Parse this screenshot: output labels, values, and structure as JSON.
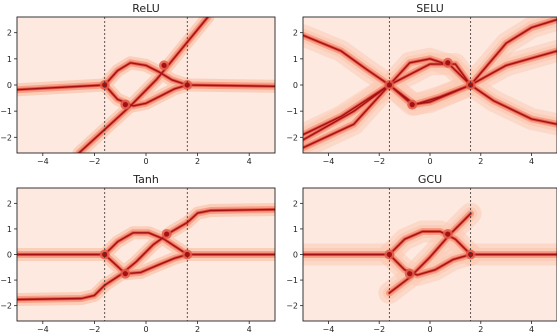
{
  "chart_data": [
    {
      "type": "heatmap",
      "title": "ReLU",
      "xlim": [
        -5,
        5
      ],
      "ylim": [
        -2.6,
        2.6
      ],
      "xticks": [
        -4,
        -2,
        0,
        2,
        4
      ],
      "yticks": [
        -2,
        -1,
        0,
        1,
        2
      ],
      "xtick_labels": [
        "−4",
        "−2",
        "0",
        "2",
        "4"
      ],
      "ytick_labels": [
        "−2",
        "−1",
        "0",
        "1",
        "2"
      ],
      "vlines": [
        -1.6,
        1.6
      ],
      "curves": [
        {
          "x": [
            -5,
            -1.6
          ],
          "y": [
            -0.18,
            0.0
          ]
        },
        {
          "x": [
            1.6,
            5
          ],
          "y": [
            0.0,
            -0.05
          ]
        },
        {
          "x": [
            -1.6,
            -1.1,
            -0.6,
            0.0,
            0.5,
            1.0,
            1.6
          ],
          "y": [
            0.0,
            0.55,
            0.85,
            0.75,
            0.5,
            0.2,
            0.0
          ]
        },
        {
          "x": [
            -1.6,
            -1.1,
            -0.5,
            0.0,
            0.6,
            1.1,
            1.6
          ],
          "y": [
            0.0,
            -0.55,
            -0.8,
            -0.7,
            -0.4,
            -0.15,
            0.0
          ]
        },
        {
          "x": [
            -2.6,
            -1.6,
            -0.6,
            0.4,
            1.4,
            2.4
          ],
          "y": [
            -2.6,
            -1.7,
            -0.8,
            0.2,
            1.4,
            2.6
          ]
        }
      ],
      "hotspots": [
        [
          -0.8,
          -0.75
        ],
        [
          0.7,
          0.75
        ],
        [
          -1.6,
          0.0
        ],
        [
          1.6,
          0.0
        ]
      ]
    },
    {
      "type": "heatmap",
      "title": "SELU",
      "xlim": [
        -5,
        5
      ],
      "ylim": [
        -2.6,
        2.6
      ],
      "xticks": [
        -4,
        -2,
        0,
        2,
        4
      ],
      "yticks": [
        -2,
        -1,
        0,
        1,
        2
      ],
      "xtick_labels": [
        "−4",
        "−2",
        "0",
        "2",
        "4"
      ],
      "ytick_labels": [
        "−2",
        "−1",
        "0",
        "1",
        "2"
      ],
      "vlines": [
        -1.6,
        1.6
      ],
      "curves": [
        {
          "x": [
            -5,
            -3.5,
            -2.5,
            -1.6,
            -0.6,
            0.4,
            1.6,
            3.0,
            5.0
          ],
          "y": [
            1.9,
            1.3,
            0.6,
            0.0,
            -0.75,
            -0.45,
            0.0,
            0.75,
            1.3
          ]
        },
        {
          "x": [
            -5,
            -3.5,
            -1.6,
            0.0,
            1.0,
            1.6,
            2.5,
            4.0,
            5.0
          ],
          "y": [
            -1.9,
            -1.2,
            0.0,
            0.8,
            0.8,
            0.0,
            -0.6,
            -1.3,
            -1.5
          ]
        },
        {
          "x": [
            -5,
            -3.0,
            -1.6,
            -0.8,
            0.0,
            0.8,
            1.6,
            3.0,
            4.0,
            5.0
          ],
          "y": [
            -2.1,
            -1.0,
            0.0,
            0.85,
            1.0,
            0.75,
            0.0,
            1.6,
            2.2,
            2.5
          ]
        },
        {
          "x": [
            -5,
            -3.0,
            -1.6,
            -0.7,
            0.0,
            1.6
          ],
          "y": [
            -2.4,
            -1.5,
            0.0,
            -0.75,
            -0.65,
            0.0
          ]
        }
      ],
      "hotspots": [
        [
          -1.6,
          0.0
        ],
        [
          1.6,
          0.0
        ],
        [
          -0.7,
          -0.75
        ],
        [
          0.7,
          0.85
        ]
      ]
    },
    {
      "type": "heatmap",
      "title": "Tanh",
      "xlim": [
        -5,
        5
      ],
      "ylim": [
        -2.6,
        2.6
      ],
      "xticks": [
        -4,
        -2,
        0,
        2,
        4
      ],
      "yticks": [
        -2,
        -1,
        0,
        1,
        2
      ],
      "xtick_labels": [
        "−4",
        "−2",
        "0",
        "2",
        "4"
      ],
      "ytick_labels": [
        "−2",
        "−1",
        "0",
        "1",
        "2"
      ],
      "vlines": [
        -1.6,
        1.6
      ],
      "curves": [
        {
          "x": [
            -5,
            -1.6
          ],
          "y": [
            0.0,
            0.0
          ]
        },
        {
          "x": [
            1.6,
            5
          ],
          "y": [
            0.0,
            0.0
          ]
        },
        {
          "x": [
            -5,
            -2.5,
            -2.0,
            -1.6
          ],
          "y": [
            -1.76,
            -1.72,
            -1.6,
            -1.2
          ]
        },
        {
          "x": [
            1.6,
            2.0,
            2.5,
            5.0
          ],
          "y": [
            1.25,
            1.62,
            1.72,
            1.76
          ]
        },
        {
          "x": [
            -1.6,
            -1.1,
            -0.5,
            0.1,
            0.7,
            1.6
          ],
          "y": [
            0.0,
            0.5,
            0.85,
            0.85,
            0.6,
            0.0
          ]
        },
        {
          "x": [
            -1.6,
            -0.8,
            -0.2,
            0.5,
            1.1,
            1.6
          ],
          "y": [
            0.0,
            -0.75,
            -0.7,
            -0.4,
            -0.15,
            0.0
          ]
        },
        {
          "x": [
            -1.6,
            -1.0,
            -0.4,
            0.3,
            1.0,
            1.6
          ],
          "y": [
            -1.2,
            -0.8,
            -0.3,
            0.4,
            0.9,
            1.25
          ]
        }
      ],
      "hotspots": [
        [
          -0.8,
          -0.75
        ],
        [
          0.8,
          0.8
        ],
        [
          -1.6,
          0.0
        ],
        [
          1.6,
          0.0
        ]
      ]
    },
    {
      "type": "heatmap",
      "title": "GCU",
      "xlim": [
        -5,
        5
      ],
      "ylim": [
        -2.6,
        2.6
      ],
      "xticks": [
        -4,
        -2,
        0,
        2,
        4
      ],
      "yticks": [
        -2,
        -1,
        0,
        1,
        2
      ],
      "xtick_labels": [
        "−4",
        "−2",
        "0",
        "2",
        "4"
      ],
      "ytick_labels": [
        "−2",
        "−1",
        "0",
        "1",
        "2"
      ],
      "vlines": [
        -1.6,
        1.6
      ],
      "curves": [
        {
          "x": [
            -5,
            -1.6
          ],
          "y": [
            0.0,
            0.0
          ]
        },
        {
          "x": [
            1.6,
            5
          ],
          "y": [
            0.0,
            0.0
          ]
        },
        {
          "x": [
            -1.6,
            -1.0,
            -0.3,
            0.4,
            1.0,
            1.6
          ],
          "y": [
            0.0,
            0.6,
            0.9,
            0.9,
            0.6,
            0.0
          ]
        },
        {
          "x": [
            -1.6,
            -1.0,
            -0.5,
            0.2,
            0.9,
            1.6
          ],
          "y": [
            0.0,
            -0.6,
            -0.8,
            -0.6,
            -0.2,
            0.0
          ]
        },
        {
          "x": [
            -1.6,
            -0.8,
            0.0,
            0.8,
            1.6
          ],
          "y": [
            -1.5,
            -0.9,
            -0.1,
            0.8,
            1.6
          ]
        }
      ],
      "hotspots": [
        [
          -0.8,
          -0.75
        ],
        [
          0.7,
          0.8
        ],
        [
          -1.6,
          0.0
        ],
        [
          1.6,
          0.0
        ]
      ]
    }
  ],
  "colors": {
    "background": "#fde9e0",
    "band_outer": "#fbcbb5",
    "band_mid": "#f79b82",
    "band_inner": "#e05a47",
    "band_core": "#a50f15",
    "vline": "#333333",
    "frame": "#222222"
  }
}
